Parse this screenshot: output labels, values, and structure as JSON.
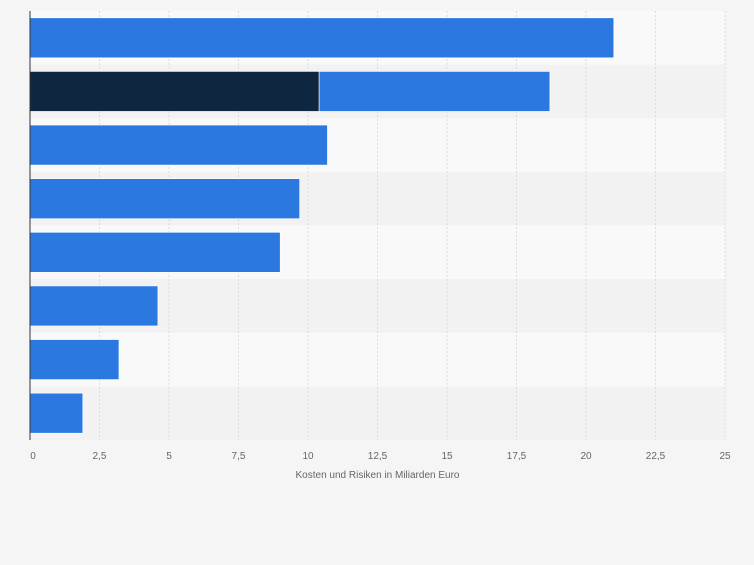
{
  "chart_data": {
    "type": "bar",
    "orientation": "horizontal",
    "stacked": true,
    "title": "",
    "xlabel": "Kosten und Risiken in Miliarden Euro",
    "ylabel": "",
    "xlim": [
      0,
      25
    ],
    "ticks": [
      {
        "value": 0,
        "label": "0"
      },
      {
        "value": 2.5,
        "label": "2,5"
      },
      {
        "value": 5,
        "label": "5"
      },
      {
        "value": 7.5,
        "label": "7,5"
      },
      {
        "value": 10,
        "label": "10"
      },
      {
        "value": 12.5,
        "label": "12,5"
      },
      {
        "value": 15,
        "label": "15"
      },
      {
        "value": 17.5,
        "label": "17,5"
      },
      {
        "value": 20,
        "label": "20"
      },
      {
        "value": 22.5,
        "label": "22,5"
      },
      {
        "value": 25,
        "label": "25"
      }
    ],
    "categories": [
      "",
      "",
      "",
      "",
      "",
      "",
      "",
      ""
    ],
    "series": [
      {
        "color": "#0f2640",
        "values": [
          0,
          10.4,
          0,
          0,
          0,
          0,
          0,
          0
        ]
      },
      {
        "color": "#2a78e0",
        "values": [
          21.0,
          8.3,
          10.7,
          9.7,
          9.0,
          4.6,
          3.2,
          1.9
        ]
      }
    ],
    "grid": true,
    "legend": "none"
  },
  "colors": {
    "background": "#f5f5f5",
    "band_light": "#f9f9f9",
    "band_dark": "#f2f2f2",
    "gridline": "#dcdcdc",
    "axis": "#333333",
    "tick_text": "#666666"
  }
}
